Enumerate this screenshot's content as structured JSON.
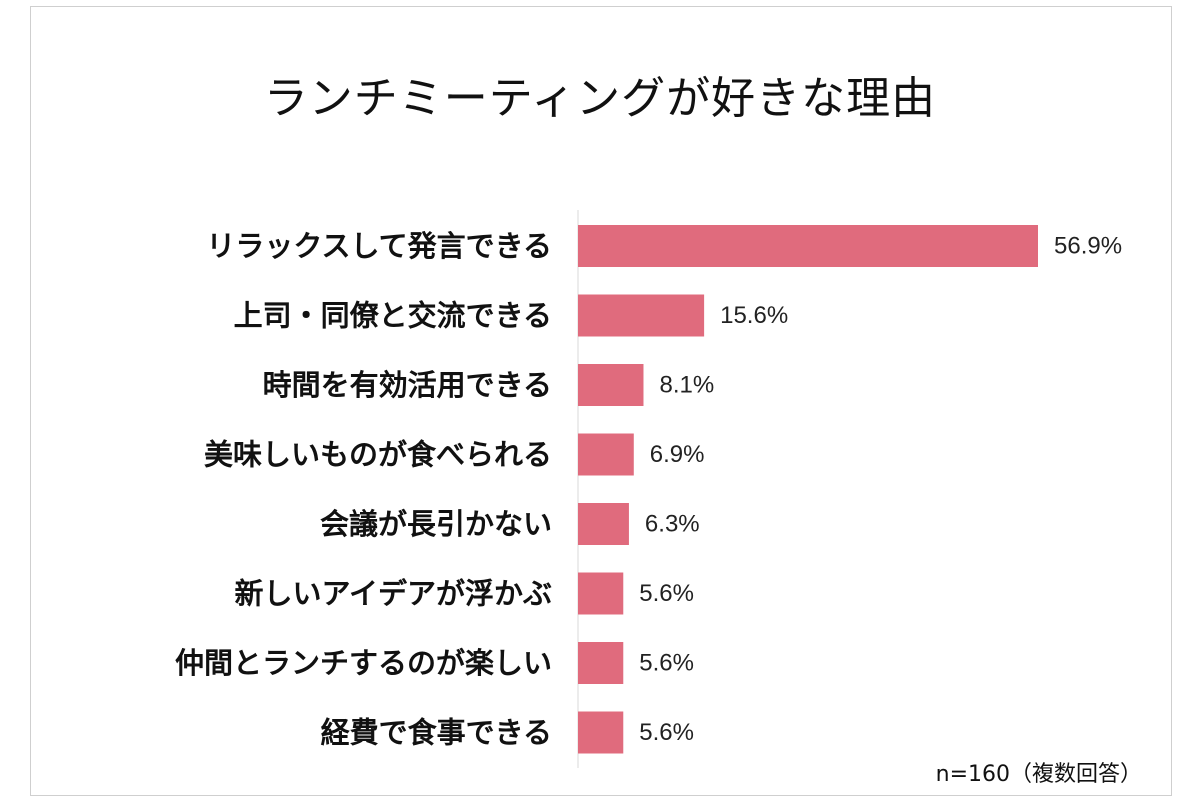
{
  "chart_data": {
    "type": "bar",
    "orientation": "horizontal",
    "title": "ランチミーティングが好きな理由",
    "categories": [
      "リラックスして発言できる",
      "上司・同僚と交流できる",
      "時間を有効活用できる",
      "美味しいものが食べられる",
      "会議が長引かない",
      "新しいアイデアが浮かぶ",
      "仲間とランチするのが楽しい",
      "経費で食事できる"
    ],
    "values": [
      56.9,
      15.6,
      8.1,
      6.9,
      6.3,
      5.6,
      5.6,
      5.6
    ],
    "value_labels": [
      "56.9%",
      "15.6%",
      "8.1%",
      "6.9%",
      "6.3%",
      "5.6%",
      "5.6%",
      "5.6%"
    ],
    "bar_color": "#e06b7d",
    "axis_line_color": "#d9d9d9",
    "xlim": [
      0,
      70
    ],
    "grid": false,
    "legend": "none",
    "note": "n=160（複数回答）"
  }
}
